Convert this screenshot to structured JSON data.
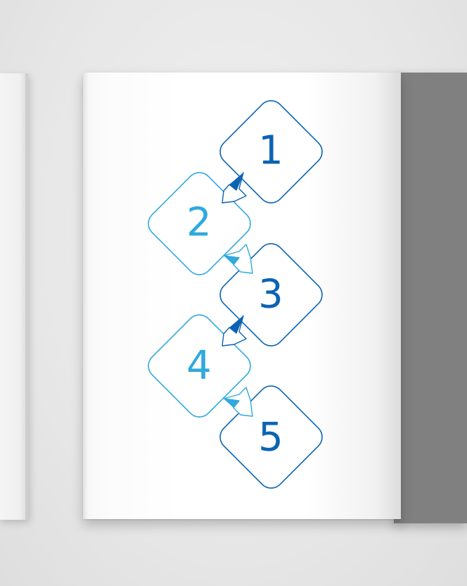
{
  "colors": {
    "dark_blue": "#0B63B3",
    "light_blue": "#2FA9DE",
    "back_cover": "#808080",
    "page": "#FFFFFF"
  },
  "steps": [
    {
      "number": "1",
      "color": "dark_blue"
    },
    {
      "number": "2",
      "color": "light_blue"
    },
    {
      "number": "3",
      "color": "dark_blue"
    },
    {
      "number": "4",
      "color": "light_blue"
    },
    {
      "number": "5",
      "color": "dark_blue"
    }
  ],
  "connectors": [
    {
      "from": "1",
      "to": "2",
      "icon": "arrow-down-left-icon"
    },
    {
      "from": "2",
      "to": "3",
      "icon": "arrow-down-right-icon"
    },
    {
      "from": "3",
      "to": "4",
      "icon": "arrow-down-left-icon"
    },
    {
      "from": "4",
      "to": "5",
      "icon": "arrow-down-right-icon"
    }
  ]
}
